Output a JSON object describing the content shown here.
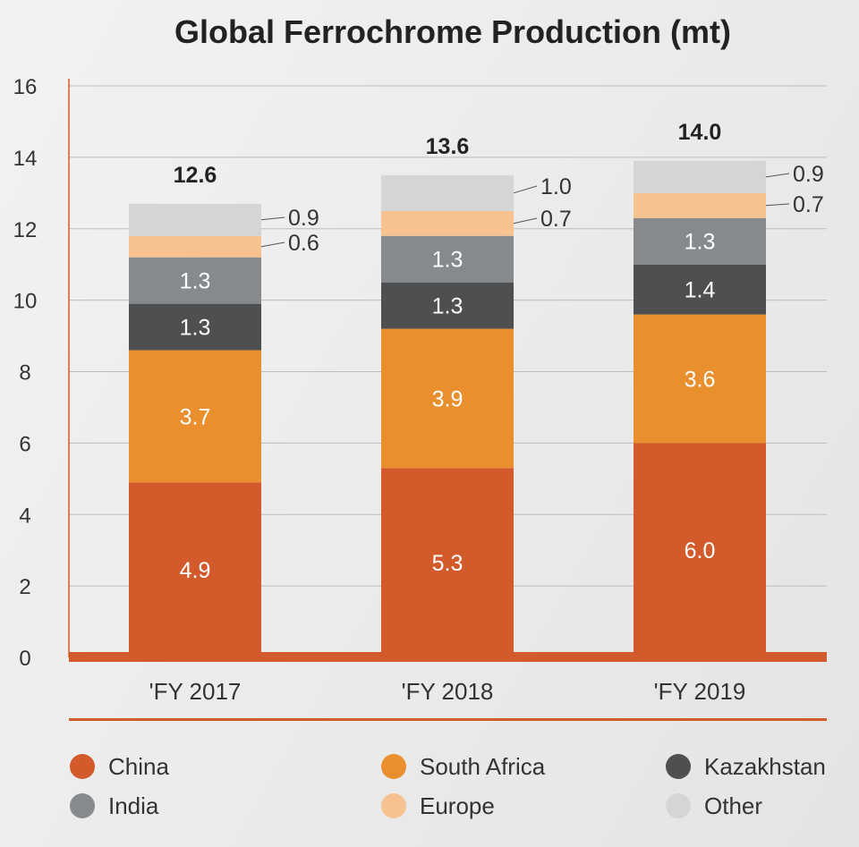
{
  "chart_data": {
    "type": "bar",
    "stacked": true,
    "title": "Global Ferrochrome Production (mt)",
    "categories": [
      "'FY 2017",
      "'FY 2018",
      "'FY 2019"
    ],
    "series": [
      {
        "name": "China",
        "color": "#d35a2a",
        "values": [
          4.9,
          5.3,
          6.0
        ],
        "value_labels": [
          "4.9",
          "5.3",
          "6.0"
        ]
      },
      {
        "name": "South Africa",
        "color": "#ea8f2e",
        "values": [
          3.7,
          3.9,
          3.6
        ],
        "value_labels": [
          "3.7",
          "3.9",
          "3.6"
        ]
      },
      {
        "name": "Kazakhstan",
        "color": "#4d4f51",
        "values": [
          1.3,
          1.3,
          1.4
        ],
        "value_labels": [
          "1.3",
          "1.3",
          "1.4"
        ]
      },
      {
        "name": "India",
        "color": "#878a8d",
        "values": [
          1.3,
          1.3,
          1.3
        ],
        "value_labels": [
          "1.3",
          "1.3",
          "1.3"
        ]
      },
      {
        "name": "Europe",
        "color": "#f5c290",
        "values": [
          0.6,
          0.7,
          0.7
        ],
        "value_labels": [
          "0.6",
          "0.7",
          "0.7"
        ]
      },
      {
        "name": "Other",
        "color": "#d4d5d7",
        "values": [
          0.9,
          1.0,
          0.9
        ],
        "value_labels": [
          "0.9",
          "1.0",
          "0.9"
        ]
      }
    ],
    "totals": [
      "12.6",
      "13.6",
      "14.0"
    ],
    "xlabel": "",
    "ylabel": "",
    "ylim": [
      0,
      16
    ],
    "yticks": [
      "0",
      "2",
      "4",
      "6",
      "8",
      "10",
      "12",
      "14",
      "16"
    ],
    "grid": true,
    "legend_position": "bottom",
    "accent_color": "#d35a2a",
    "grid_color": "#bdbdbd"
  }
}
